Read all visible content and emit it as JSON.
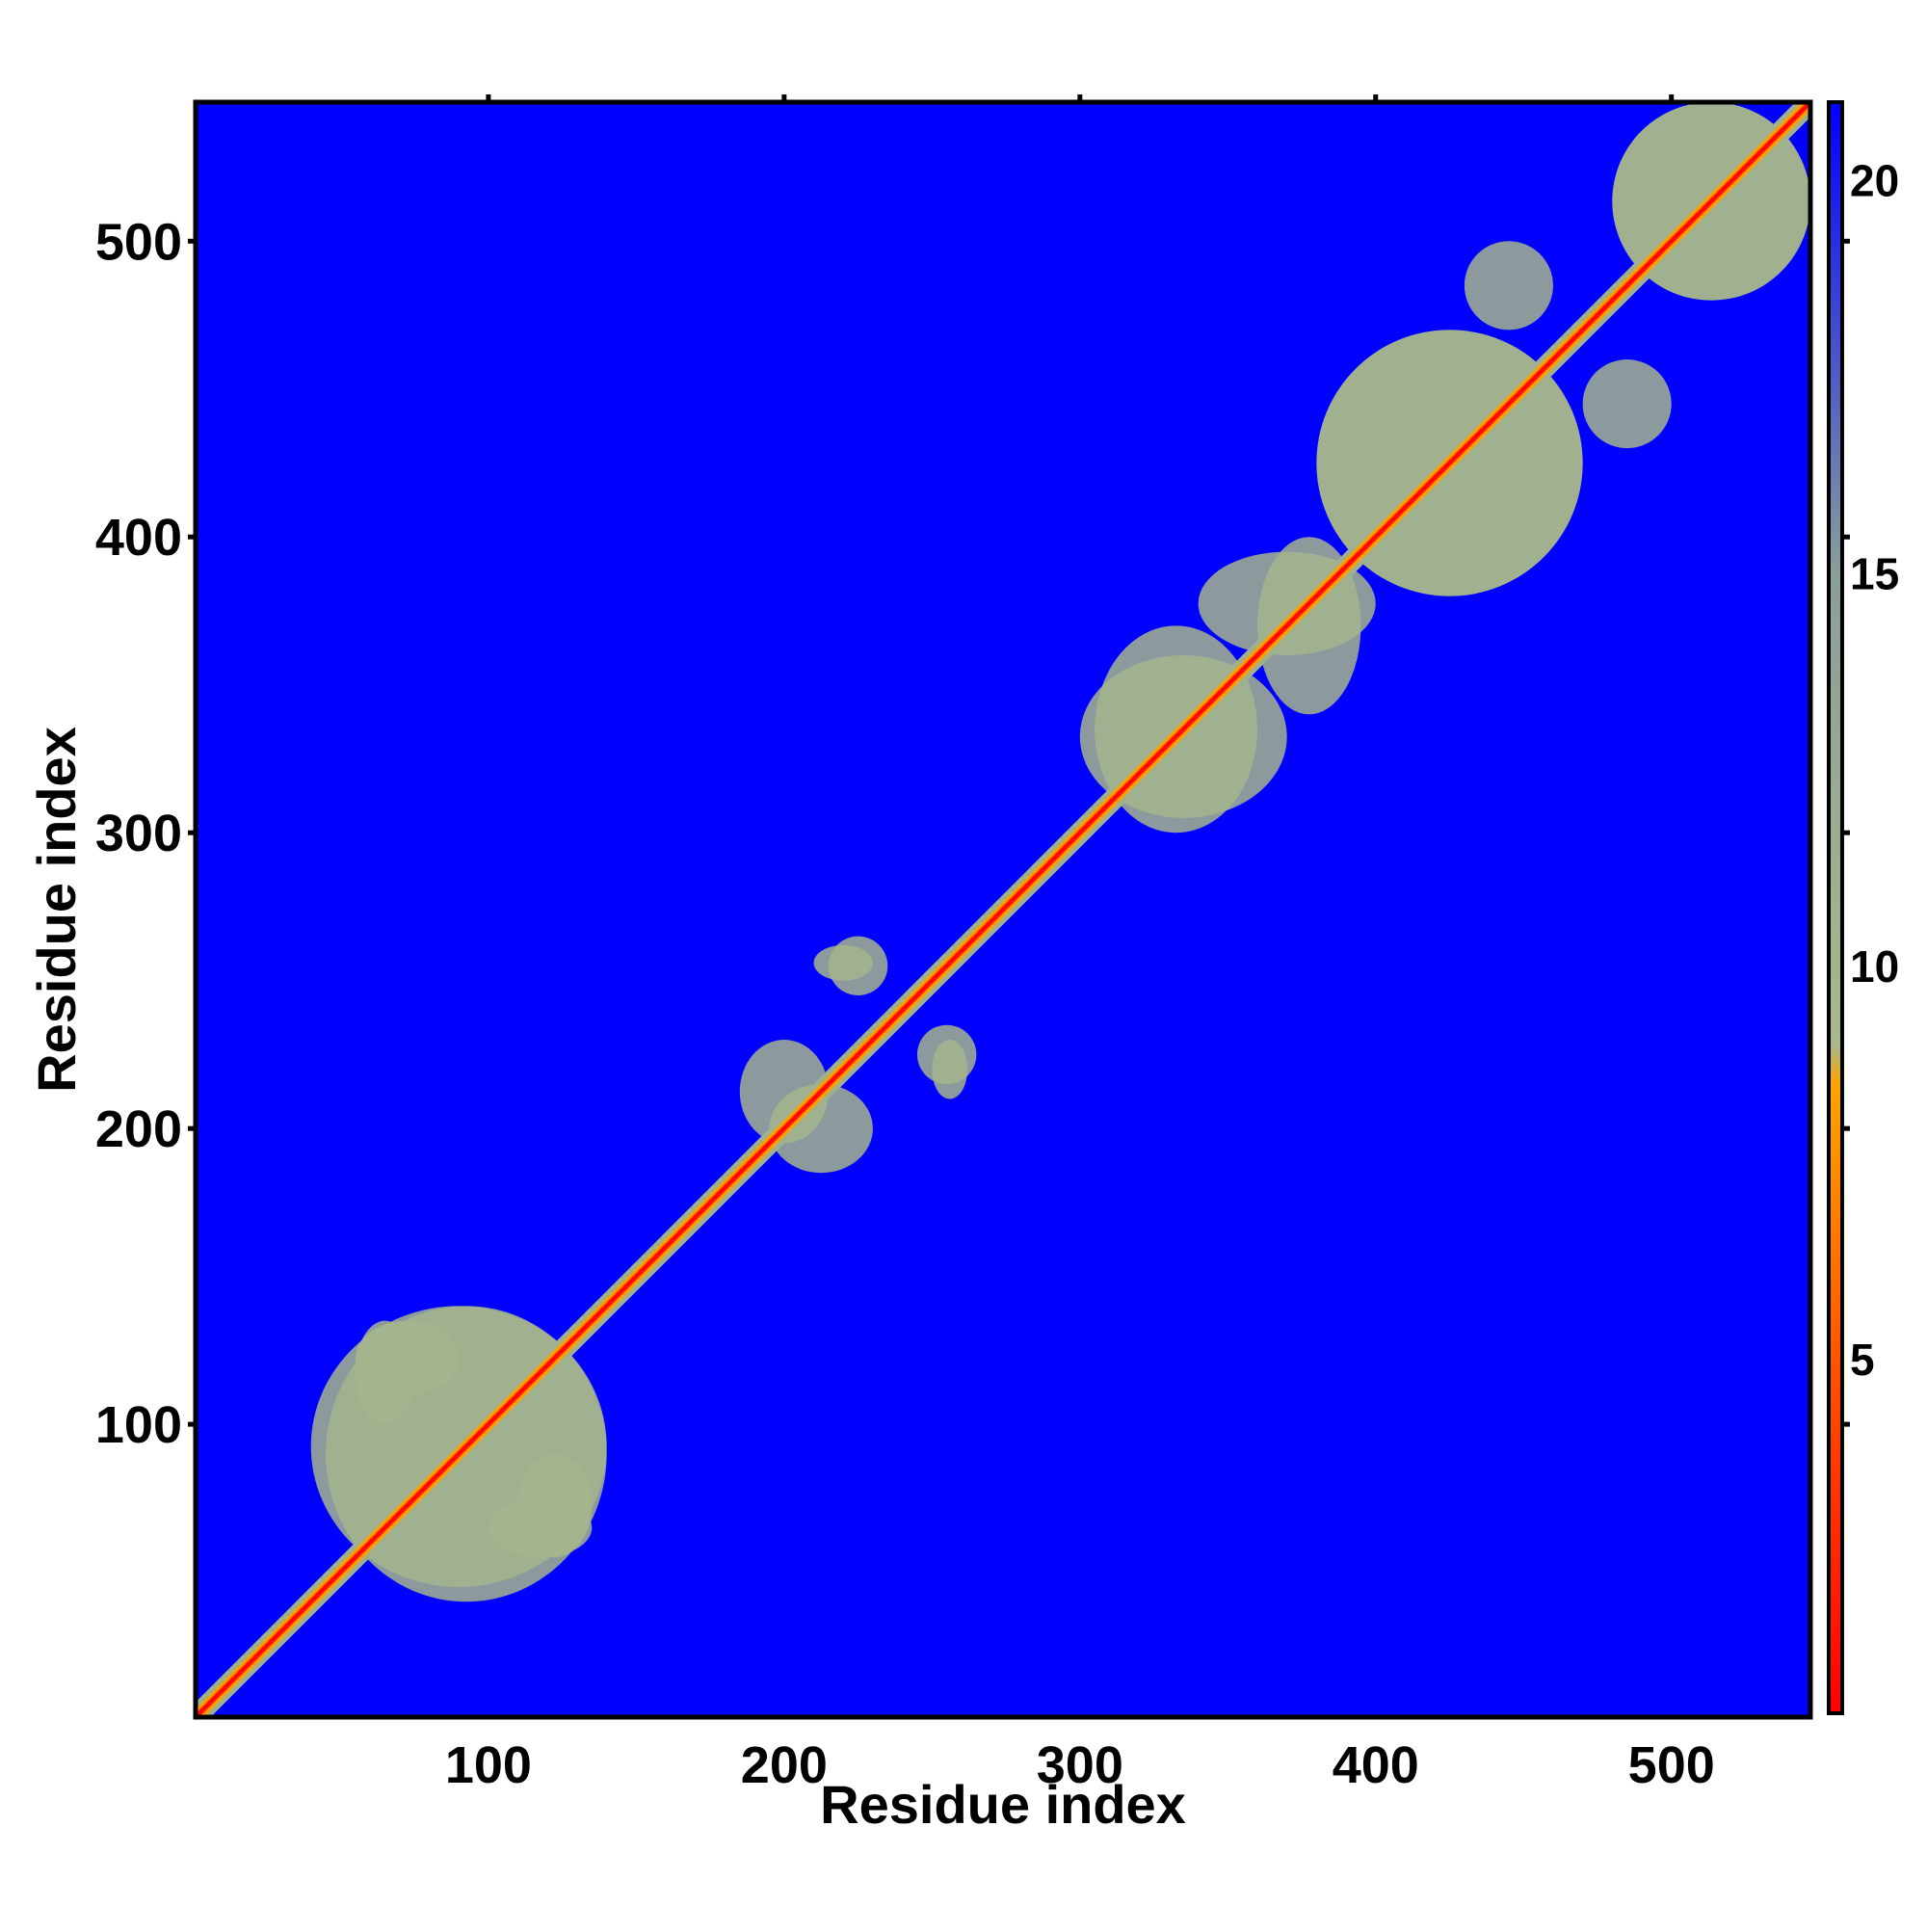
{
  "chart_data": {
    "type": "heatmap",
    "title": "",
    "xlabel": "Residue index",
    "ylabel": "Residue index",
    "xlim": [
      1,
      547
    ],
    "ylim": [
      1,
      547
    ],
    "n_residues": 547,
    "x_ticks": [
      100,
      200,
      300,
      400,
      500
    ],
    "y_ticks": [
      100,
      200,
      300,
      400,
      500
    ],
    "x_tick_labels": [
      "100",
      "200",
      "300",
      "400",
      "500"
    ],
    "y_tick_labels": [
      "100",
      "200",
      "300",
      "400",
      "500"
    ],
    "colorbar": {
      "range": [
        0.5,
        21
      ],
      "ticks": [
        5,
        10,
        15,
        20
      ],
      "tick_labels": [
        "5",
        "10",
        "15",
        "20"
      ],
      "stops": [
        {
          "value": 0.5,
          "color": "#ff0000"
        },
        {
          "value": 5,
          "color": "#ff5500"
        },
        {
          "value": 8.5,
          "color": "#ffa500"
        },
        {
          "value": 9,
          "color": "#a9b98a"
        },
        {
          "value": 15,
          "color": "#8a9f9a"
        },
        {
          "value": 21,
          "color": "#0000ff"
        }
      ]
    },
    "background_value": 21,
    "diagonal_value": 1,
    "contact_regions": [
      {
        "i_range": [
          40,
          140
        ],
        "j_range": [
          45,
          140
        ],
        "value": 10
      },
      {
        "i_range": [
          55,
          75
        ],
        "j_range": [
          100,
          135
        ],
        "value": 10
      },
      {
        "i_range": [
          110,
          135
        ],
        "j_range": [
          55,
          90
        ],
        "value": 10
      },
      {
        "i_range": [
          195,
          230
        ],
        "j_range": [
          185,
          215
        ],
        "value": 10
      },
      {
        "i_range": [
          210,
          230
        ],
        "j_range": [
          250,
          262
        ],
        "value": 10
      },
      {
        "i_range": [
          245,
          265
        ],
        "j_range": [
          215,
          235
        ],
        "value": 10
      },
      {
        "i_range": [
          305,
          360
        ],
        "j_range": [
          300,
          370
        ],
        "value": 10
      },
      {
        "i_range": [
          340,
          400
        ],
        "j_range": [
          360,
          395
        ],
        "value": 10
      },
      {
        "i_range": [
          380,
          470
        ],
        "j_range": [
          380,
          470
        ],
        "value": 10
      },
      {
        "i_range": [
          430,
          460
        ],
        "j_range": [
          470,
          500
        ],
        "value": 10
      },
      {
        "i_range": [
          480,
          547
        ],
        "j_range": [
          480,
          547
        ],
        "value": 10
      }
    ]
  }
}
